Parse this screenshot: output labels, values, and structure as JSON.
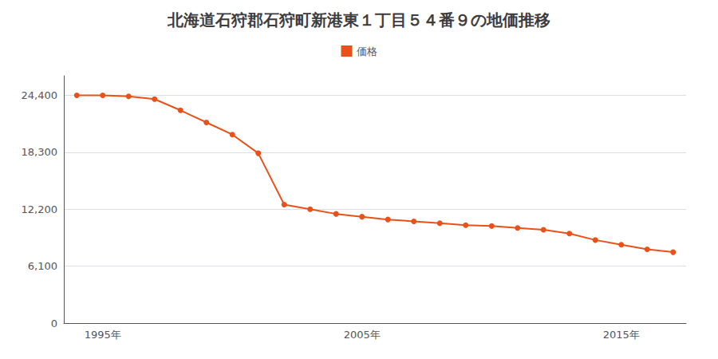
{
  "chart_data": {
    "type": "line",
    "title": "北海道石狩郡石狩町新港東１丁目５４番９の地価推移",
    "x": [
      1994,
      1995,
      1996,
      1997,
      1998,
      1999,
      2000,
      2001,
      2002,
      2003,
      2004,
      2005,
      2006,
      2007,
      2008,
      2009,
      2010,
      2011,
      2012,
      2013,
      2014,
      2015,
      2016,
      2017
    ],
    "series": [
      {
        "name": "価格",
        "color": "#E8521A",
        "marker": "circle",
        "values": [
          24400,
          24400,
          24300,
          24000,
          22800,
          21500,
          20200,
          18200,
          12700,
          12200,
          11700,
          11400,
          11100,
          10900,
          10700,
          10500,
          10400,
          10200,
          10000,
          9600,
          8900,
          8400,
          7900,
          7600
        ]
      }
    ],
    "xlim": [
      1993.5,
      2017.5
    ],
    "xticks": [
      {
        "value": 1995,
        "label": "1995年"
      },
      {
        "value": 2005,
        "label": "2005年"
      },
      {
        "value": 2015,
        "label": "2015年"
      }
    ],
    "ylim": [
      0,
      26500
    ],
    "yticks": [
      0,
      {
        "value": 6100,
        "label": "6,100"
      },
      {
        "value": 12200,
        "label": "12,200"
      },
      {
        "value": 18300,
        "label": "18,300"
      },
      {
        "value": 24400,
        "label": "24,400"
      }
    ],
    "grid": true,
    "legend": "top"
  }
}
